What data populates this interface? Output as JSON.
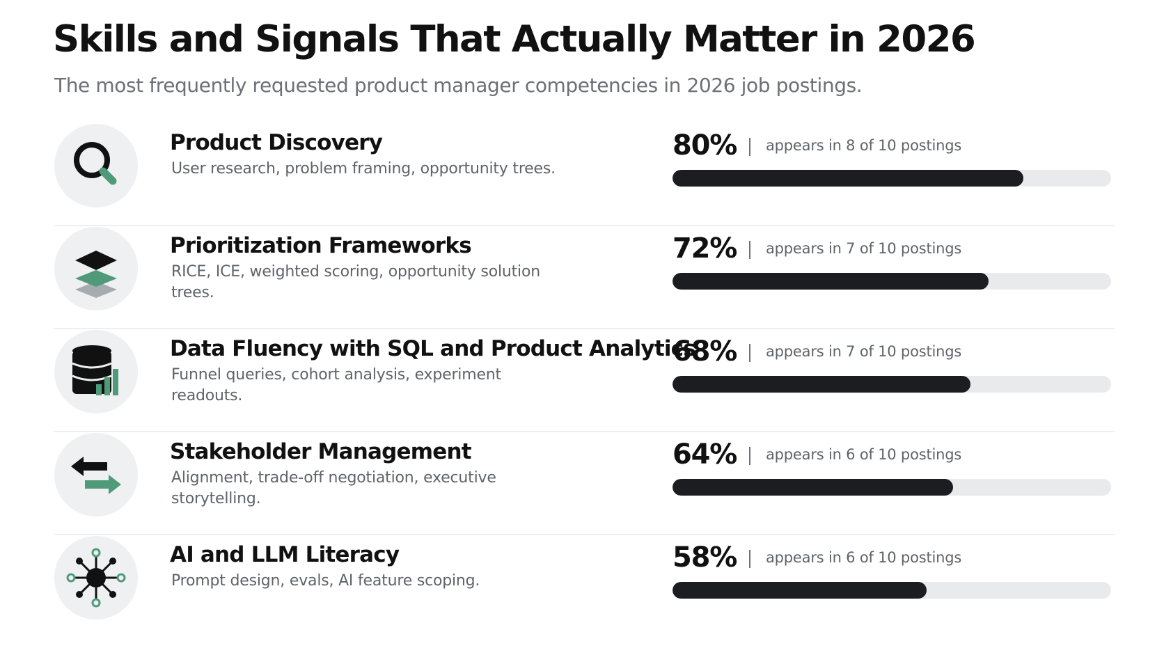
{
  "title": "Skills and Signals That Actually Matter in 2026",
  "subtitle": "The most frequently requested product manager competencies in 2026 job postings.",
  "colors": {
    "bar_fill": "#1b1d20",
    "bar_track": "#e9eaec",
    "icon_background": "#eef0f2",
    "accent_green": "#4f9a78",
    "icon_dark": "#111111"
  },
  "chart_data": {
    "type": "bar",
    "orientation": "horizontal",
    "categories": [
      "Product Discovery",
      "Prioritization Frameworks",
      "Data Fluency with SQL and Product Analytics",
      "Stakeholder Management",
      "AI and LLM Literacy"
    ],
    "values": [
      80,
      72,
      68,
      64,
      58
    ],
    "unit": "%",
    "xlim": [
      0,
      100
    ],
    "grid": false,
    "legend": "none",
    "title": "Skills and Signals That Actually Matter in 2026",
    "subtitle": "The most frequently requested product manager competencies in 2026 job postings."
  },
  "skills": [
    {
      "name": "Product Discovery",
      "description": "User research, problem framing, opportunity trees.",
      "percent_label": "80%",
      "percent": 80,
      "appears": "appears in 8 of 10 postings",
      "icon": "magnifier-icon"
    },
    {
      "name": "Prioritization Frameworks",
      "description": "RICE, ICE, weighted scoring, opportunity solution trees.",
      "percent_label": "72%",
      "percent": 72,
      "appears": "appears in 7 of 10 postings",
      "icon": "layers-icon"
    },
    {
      "name": "Data Fluency with SQL and Product Analytics",
      "description": "Funnel queries, cohort analysis, experiment readouts.",
      "percent_label": "68%",
      "percent": 68,
      "appears": "appears in 7 of 10 postings",
      "icon": "database-chart-icon"
    },
    {
      "name": "Stakeholder Management",
      "description": "Alignment, trade-off negotiation, executive storytelling.",
      "percent_label": "64%",
      "percent": 64,
      "appears": "appears in 6 of 10 postings",
      "icon": "exchange-arrows-icon"
    },
    {
      "name": "AI and LLM Literacy",
      "description": "Prompt design, evals, AI feature scoping.",
      "percent_label": "58%",
      "percent": 58,
      "appears": "appears in 6 of 10 postings",
      "icon": "network-node-icon"
    }
  ]
}
